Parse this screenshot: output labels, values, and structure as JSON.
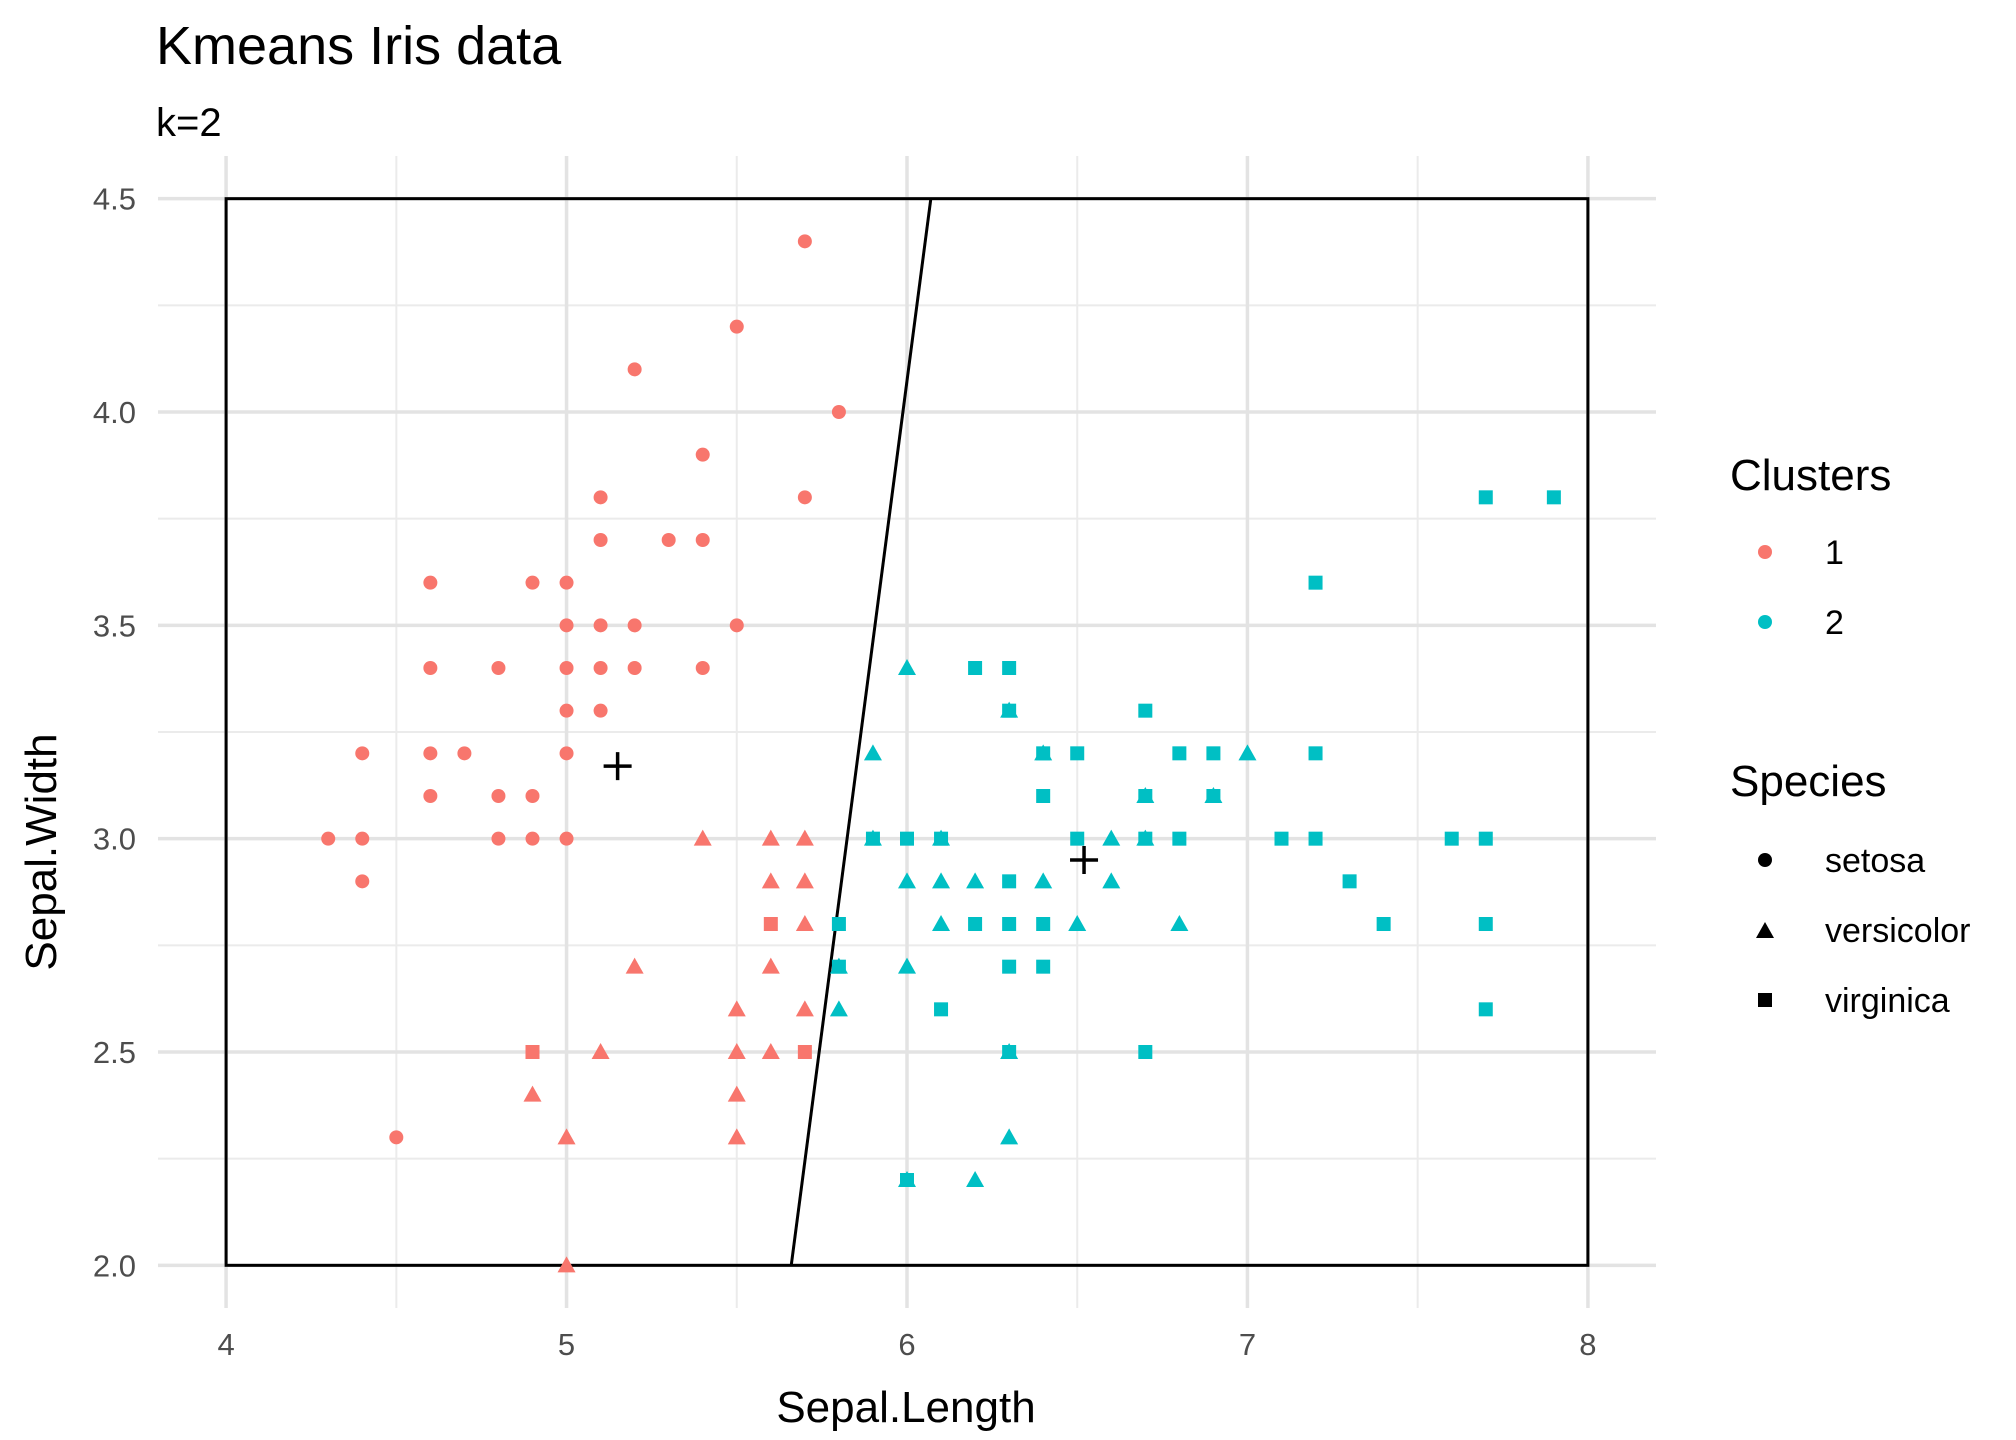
{
  "chart_data": {
    "type": "scatter",
    "title": "Kmeans Iris data",
    "subtitle": "k=2",
    "xlabel": "Sepal.Length",
    "ylabel": "Sepal.Width",
    "xlim": [
      3.8,
      8.2
    ],
    "ylim": [
      1.9,
      4.6
    ],
    "xticks": [
      4,
      5,
      6,
      7,
      8
    ],
    "yticks": [
      2.0,
      2.5,
      3.0,
      3.5,
      4.0,
      4.5
    ],
    "grid": true,
    "legend_position": "right",
    "colors": {
      "1": "#F8766D",
      "2": "#00BFC4"
    },
    "legends": [
      {
        "title": "Clusters",
        "entries": [
          {
            "label": "1",
            "color": "#F8766D",
            "shape": "circle"
          },
          {
            "label": "2",
            "color": "#00BFC4",
            "shape": "circle"
          }
        ]
      },
      {
        "title": "Species",
        "entries": [
          {
            "label": "setosa",
            "shape": "circle"
          },
          {
            "label": "versicolor",
            "shape": "triangle"
          },
          {
            "label": "virginica",
            "shape": "square"
          }
        ]
      }
    ],
    "bounding_box": {
      "x": [
        4,
        8
      ],
      "y": [
        2,
        4.5
      ]
    },
    "decision_line": [
      {
        "x": 5.66,
        "y": 2.0
      },
      {
        "x": 6.07,
        "y": 4.5
      }
    ],
    "centers": [
      {
        "cluster": "1",
        "x": 5.15,
        "y": 3.17
      },
      {
        "cluster": "2",
        "x": 6.52,
        "y": 2.95
      }
    ],
    "series": [
      {
        "cluster": "1",
        "species": "setosa",
        "points": [
          [
            5.7,
            4.4
          ],
          [
            5.5,
            4.2
          ],
          [
            5.2,
            4.1
          ],
          [
            5.8,
            4.0
          ],
          [
            5.4,
            3.9
          ],
          [
            5.1,
            3.8
          ],
          [
            5.7,
            3.8
          ],
          [
            5.1,
            3.7
          ],
          [
            5.3,
            3.7
          ],
          [
            5.4,
            3.7
          ],
          [
            4.6,
            3.6
          ],
          [
            4.9,
            3.6
          ],
          [
            5.0,
            3.6
          ],
          [
            5.0,
            3.5
          ],
          [
            5.1,
            3.5
          ],
          [
            5.2,
            3.5
          ],
          [
            5.5,
            3.5
          ],
          [
            4.6,
            3.4
          ],
          [
            4.8,
            3.4
          ],
          [
            5.0,
            3.4
          ],
          [
            5.1,
            3.4
          ],
          [
            5.2,
            3.4
          ],
          [
            5.4,
            3.4
          ],
          [
            5.0,
            3.3
          ],
          [
            5.1,
            3.3
          ],
          [
            4.4,
            3.2
          ],
          [
            4.6,
            3.2
          ],
          [
            4.7,
            3.2
          ],
          [
            5.0,
            3.2
          ],
          [
            4.6,
            3.1
          ],
          [
            4.8,
            3.1
          ],
          [
            4.9,
            3.1
          ],
          [
            4.3,
            3.0
          ],
          [
            4.4,
            3.0
          ],
          [
            4.8,
            3.0
          ],
          [
            4.9,
            3.0
          ],
          [
            5.0,
            3.0
          ],
          [
            4.4,
            2.9
          ],
          [
            4.5,
            2.3
          ]
        ]
      },
      {
        "cluster": "1",
        "species": "versicolor",
        "points": [
          [
            5.4,
            3.0
          ],
          [
            5.6,
            3.0
          ],
          [
            5.7,
            3.0
          ],
          [
            5.6,
            2.9
          ],
          [
            5.7,
            2.9
          ],
          [
            5.7,
            2.8
          ],
          [
            5.2,
            2.7
          ],
          [
            5.6,
            2.7
          ],
          [
            5.5,
            2.6
          ],
          [
            5.7,
            2.6
          ],
          [
            5.1,
            2.5
          ],
          [
            5.5,
            2.5
          ],
          [
            5.6,
            2.5
          ],
          [
            4.9,
            2.4
          ],
          [
            5.5,
            2.4
          ],
          [
            5.0,
            2.3
          ],
          [
            5.5,
            2.3
          ],
          [
            5.0,
            2.0
          ]
        ]
      },
      {
        "cluster": "1",
        "species": "virginica",
        "points": [
          [
            5.6,
            2.8
          ],
          [
            4.9,
            2.5
          ],
          [
            5.7,
            2.5
          ]
        ]
      },
      {
        "cluster": "2",
        "species": "versicolor",
        "points": [
          [
            6.0,
            3.4
          ],
          [
            6.3,
            3.3
          ],
          [
            5.9,
            3.2
          ],
          [
            6.4,
            3.2
          ],
          [
            7.0,
            3.2
          ],
          [
            6.7,
            3.1
          ],
          [
            6.9,
            3.1
          ],
          [
            5.9,
            3.0
          ],
          [
            6.1,
            3.0
          ],
          [
            6.6,
            3.0
          ],
          [
            6.7,
            3.0
          ],
          [
            6.0,
            2.9
          ],
          [
            6.1,
            2.9
          ],
          [
            6.2,
            2.9
          ],
          [
            6.4,
            2.9
          ],
          [
            6.6,
            2.9
          ],
          [
            6.1,
            2.8
          ],
          [
            6.5,
            2.8
          ],
          [
            6.8,
            2.8
          ],
          [
            5.8,
            2.7
          ],
          [
            6.0,
            2.7
          ],
          [
            5.8,
            2.6
          ],
          [
            6.3,
            2.5
          ],
          [
            6.3,
            2.3
          ],
          [
            6.0,
            2.2
          ],
          [
            6.2,
            2.2
          ]
        ]
      },
      {
        "cluster": "2",
        "species": "virginica",
        "points": [
          [
            7.7,
            3.8
          ],
          [
            7.9,
            3.8
          ],
          [
            7.2,
            3.6
          ],
          [
            6.2,
            3.4
          ],
          [
            6.3,
            3.4
          ],
          [
            6.3,
            3.3
          ],
          [
            6.7,
            3.3
          ],
          [
            6.4,
            3.2
          ],
          [
            6.5,
            3.2
          ],
          [
            6.8,
            3.2
          ],
          [
            6.9,
            3.2
          ],
          [
            7.2,
            3.2
          ],
          [
            6.4,
            3.1
          ],
          [
            6.7,
            3.1
          ],
          [
            6.9,
            3.1
          ],
          [
            5.9,
            3.0
          ],
          [
            6.0,
            3.0
          ],
          [
            6.1,
            3.0
          ],
          [
            6.5,
            3.0
          ],
          [
            6.7,
            3.0
          ],
          [
            6.8,
            3.0
          ],
          [
            7.1,
            3.0
          ],
          [
            7.2,
            3.0
          ],
          [
            7.6,
            3.0
          ],
          [
            7.7,
            3.0
          ],
          [
            6.3,
            2.9
          ],
          [
            7.3,
            2.9
          ],
          [
            5.8,
            2.8
          ],
          [
            6.2,
            2.8
          ],
          [
            6.3,
            2.8
          ],
          [
            6.4,
            2.8
          ],
          [
            7.4,
            2.8
          ],
          [
            7.7,
            2.8
          ],
          [
            5.8,
            2.7
          ],
          [
            6.3,
            2.7
          ],
          [
            6.4,
            2.7
          ],
          [
            6.1,
            2.6
          ],
          [
            7.7,
            2.6
          ],
          [
            6.3,
            2.5
          ],
          [
            6.7,
            2.5
          ],
          [
            6.0,
            2.2
          ]
        ]
      }
    ]
  }
}
